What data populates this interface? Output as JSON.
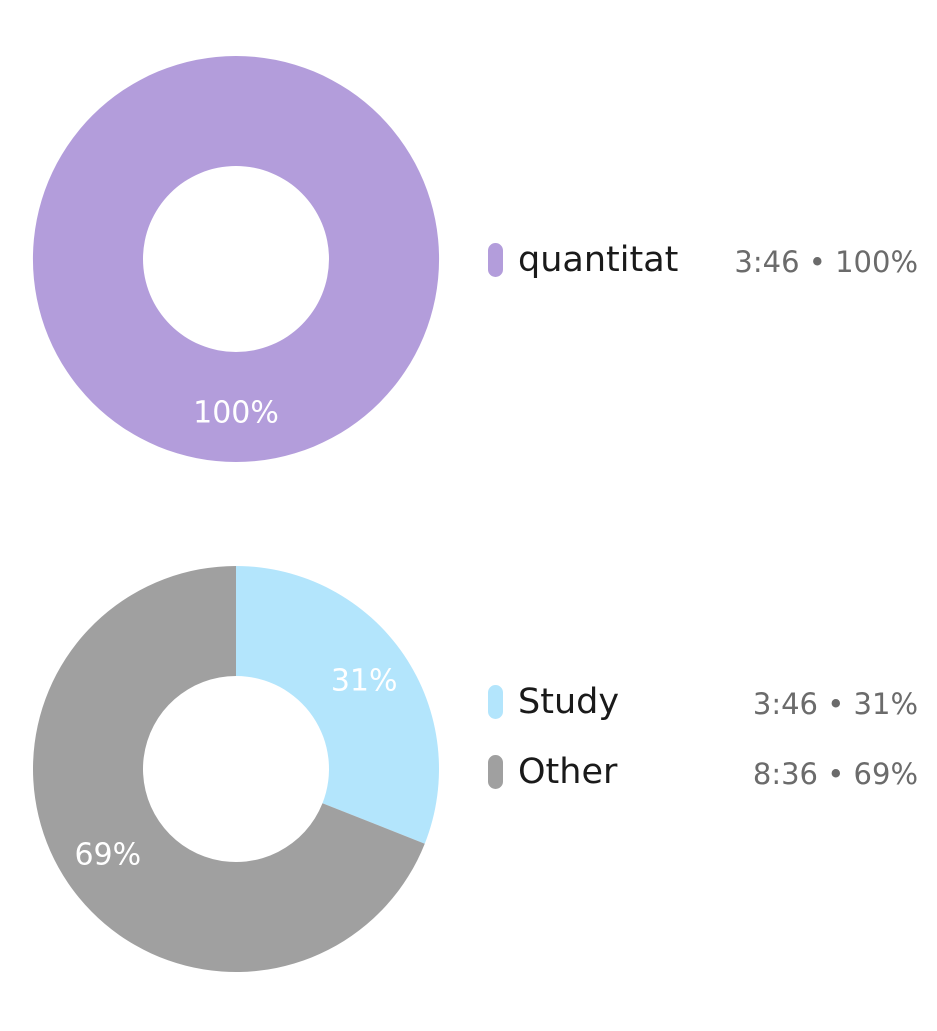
{
  "chart_data": [
    {
      "type": "pie",
      "slices": [
        {
          "label": "quantitat",
          "value": 100,
          "time": "3:46",
          "percent_text": "100%",
          "color": "#b39ddb"
        }
      ]
    },
    {
      "type": "pie",
      "slices": [
        {
          "label": "Study",
          "value": 31,
          "time": "3:46",
          "percent_text": "31%",
          "color": "#b3e5fc"
        },
        {
          "label": "Other",
          "value": 69,
          "time": "8:36",
          "percent_text": "69%",
          "color": "#a0a0a0"
        }
      ]
    }
  ],
  "legends": [
    {
      "rows": [
        {
          "name": "quantitat",
          "value": "3:46 • 100%",
          "color": "#b39ddb"
        }
      ]
    },
    {
      "rows": [
        {
          "name": "Study",
          "value": "3:46 • 31%",
          "color": "#b3e5fc"
        },
        {
          "name": "Other",
          "value": "8:36 • 69%",
          "color": "#a0a0a0"
        }
      ]
    }
  ]
}
